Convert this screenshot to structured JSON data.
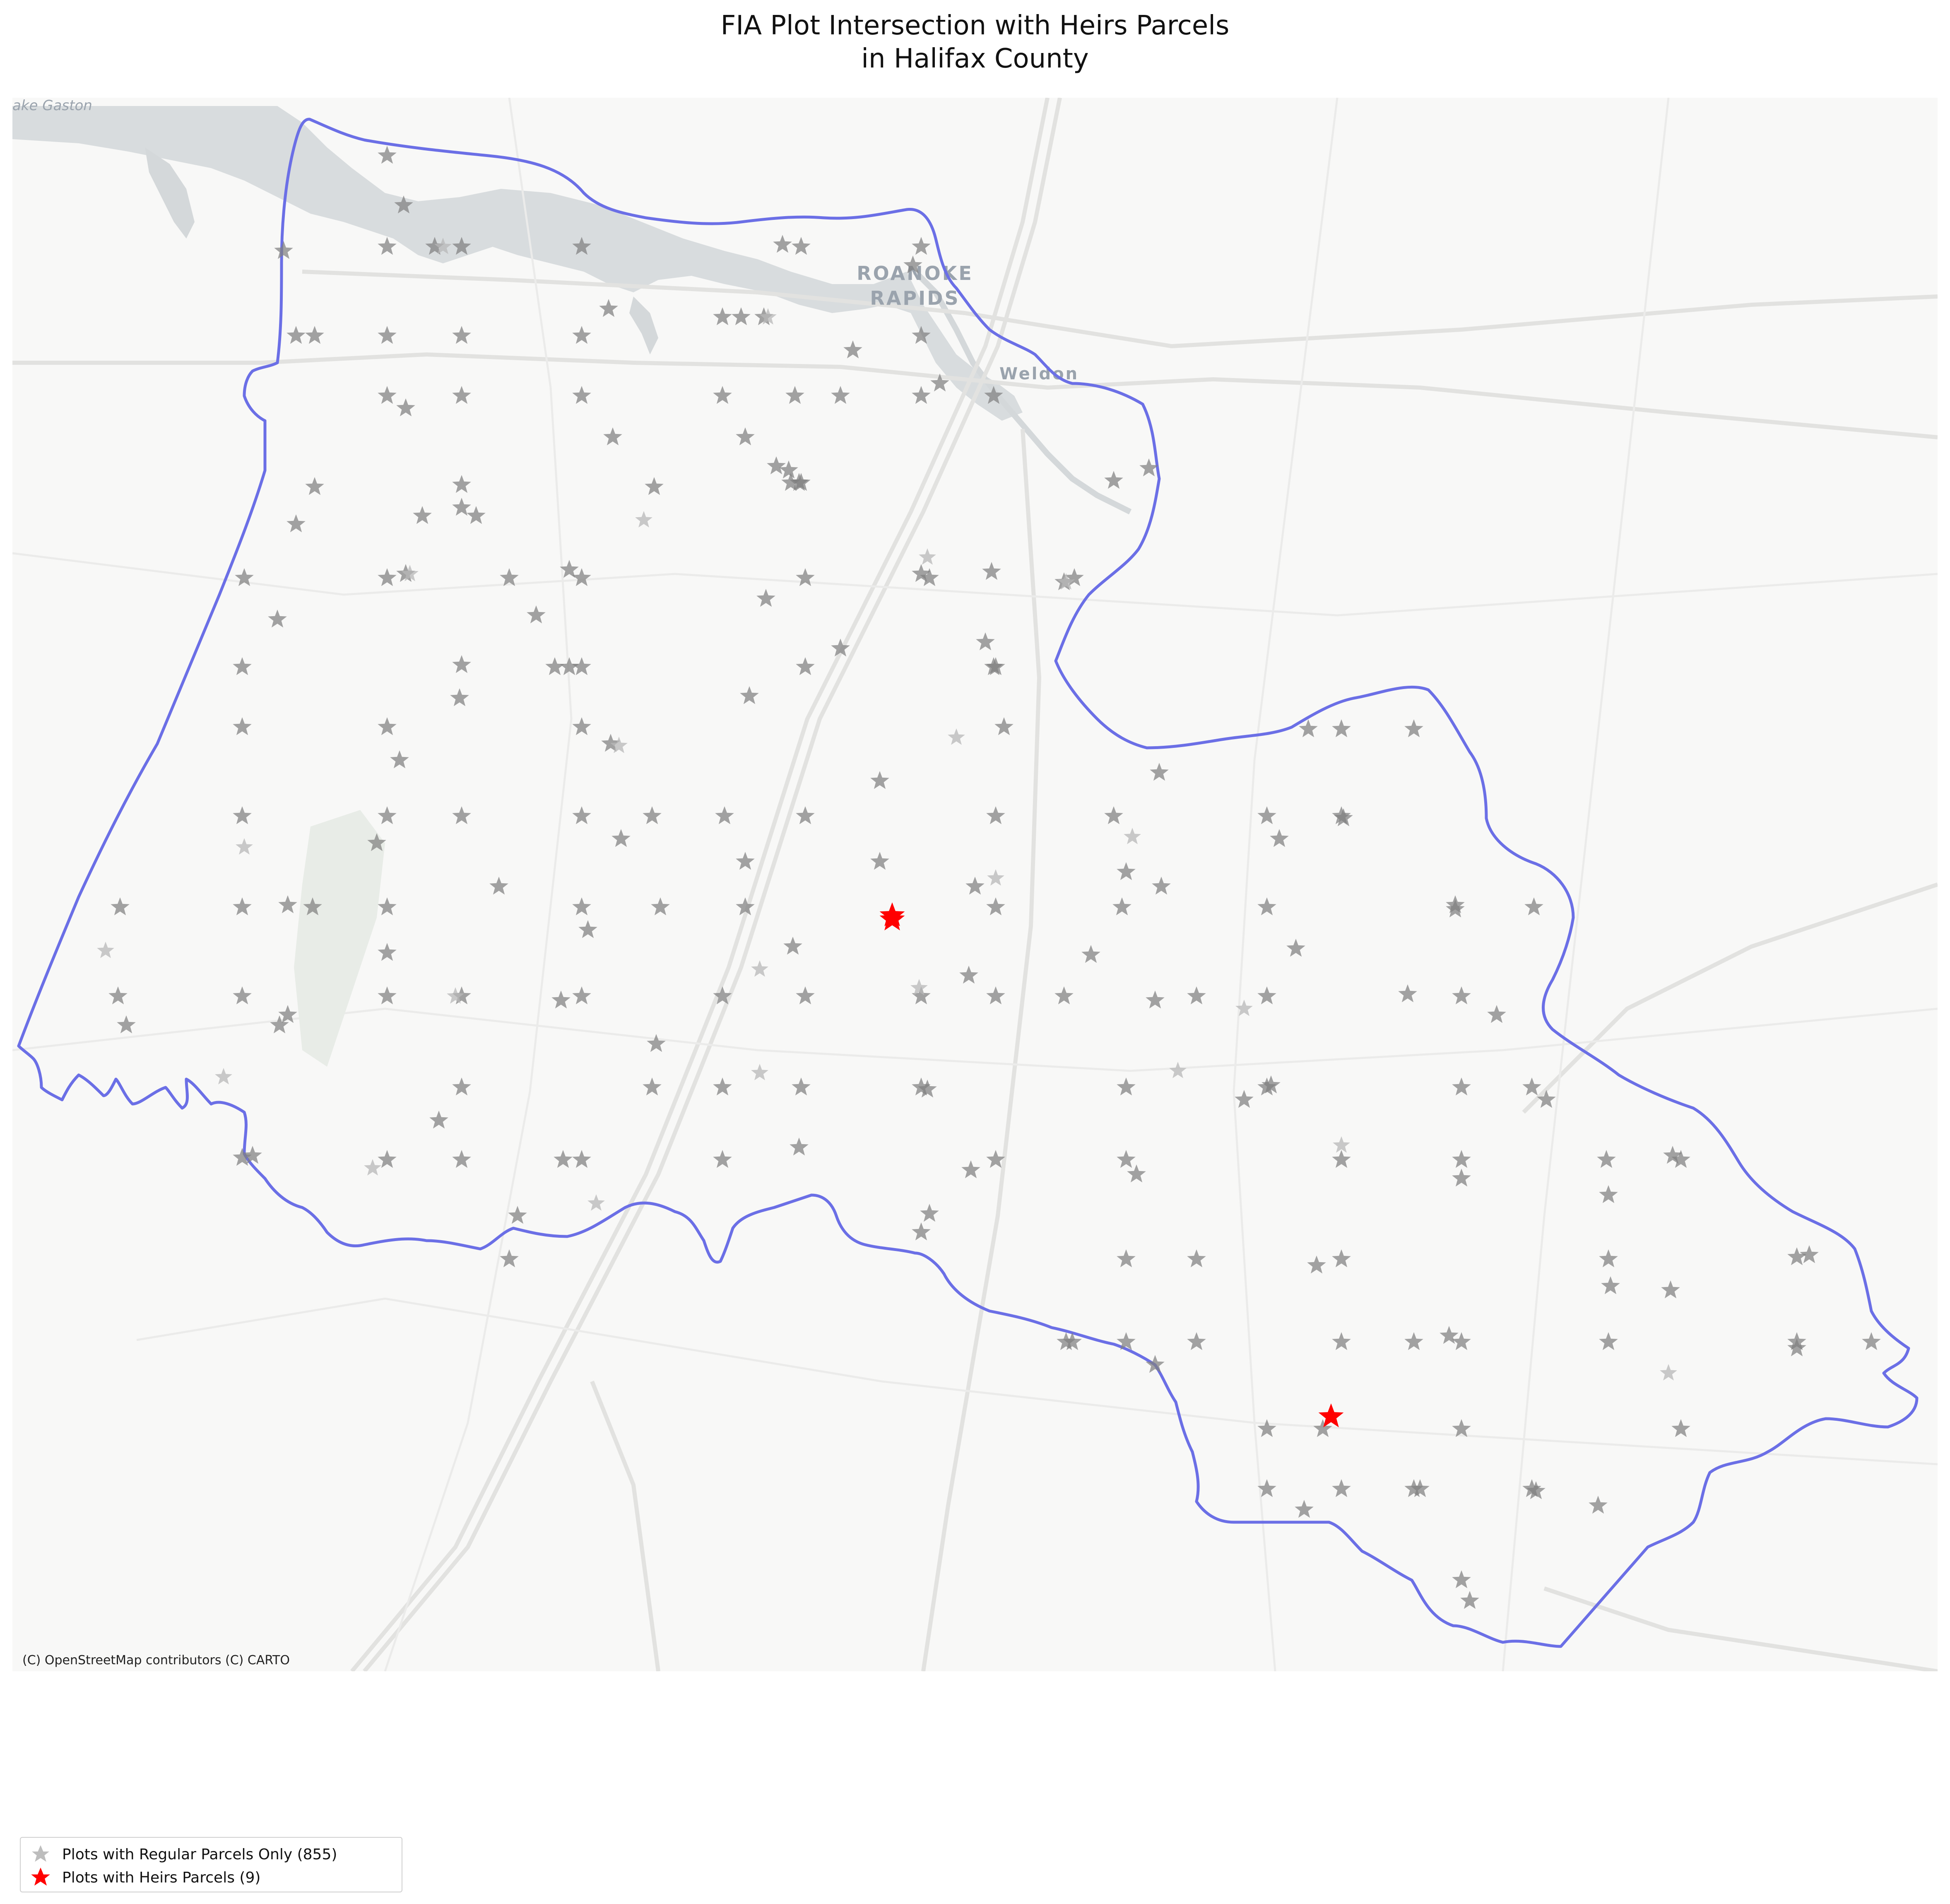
{
  "title_line1": "FIA Plot Intersection with Heirs Parcels",
  "title_line2": "in Halifax County",
  "attribution": "(C) OpenStreetMap contributors (C) CARTO",
  "basemap_labels": {
    "lake": "ake Gaston",
    "city_line1": "ROANOKE",
    "city_line2": "RAPIDS",
    "town": "Weldon"
  },
  "legend": {
    "regular": "Plots with Regular Parcels Only (855)",
    "heirs": "Plots with Heirs Parcels (9)"
  },
  "colors": {
    "county_boundary": "#6b6fe6",
    "regular_plot": "#808080",
    "heirs_plot": "#ff0000",
    "water": "#d4d8da",
    "basemap": "#f8f8f7"
  },
  "icons": {
    "regular_marker": "star-icon",
    "heirs_marker": "star-icon"
  }
}
